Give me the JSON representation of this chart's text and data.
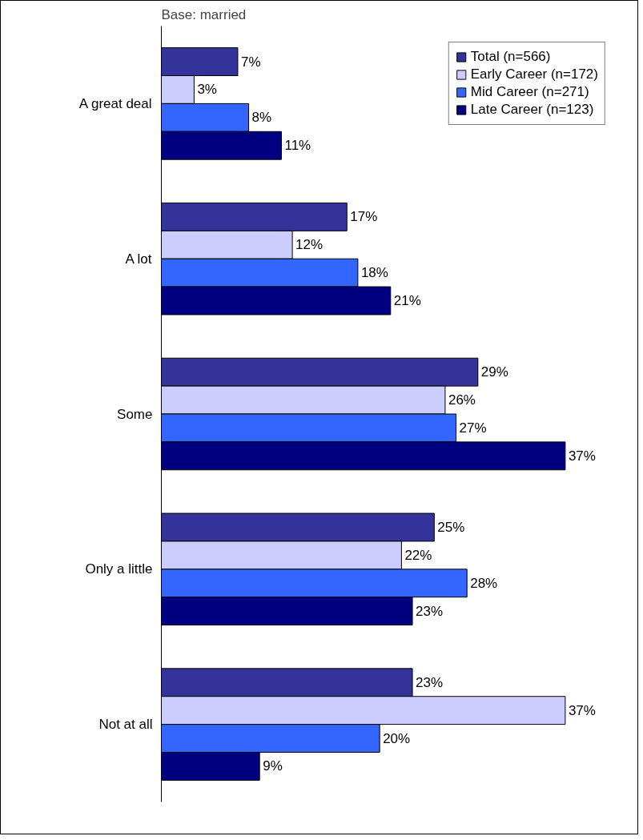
{
  "chart_data": {
    "type": "bar",
    "orientation": "horizontal",
    "title": "Base:  married",
    "categories": [
      "A great deal",
      "A lot",
      "Some",
      "Only a little",
      "Not at all"
    ],
    "series": [
      {
        "name": "Total (n=566)",
        "color": "#333399",
        "values": [
          7,
          17,
          29,
          25,
          23
        ],
        "value_labels": [
          "7%",
          "17%",
          "29%",
          "25%",
          "23%"
        ]
      },
      {
        "name": "Early Career (n=172)",
        "color": "#ccccff",
        "values": [
          3,
          12,
          26,
          22,
          37
        ],
        "value_labels": [
          "3%",
          "12%",
          "26%",
          "22%",
          "37%"
        ]
      },
      {
        "name": "Mid Career (n=271)",
        "color": "#3366ff",
        "values": [
          8,
          18,
          27,
          28,
          20
        ],
        "value_labels": [
          "8%",
          "18%",
          "27%",
          "28%",
          "20%"
        ]
      },
      {
        "name": "Late Career (n=123)",
        "color": "#000080",
        "values": [
          11,
          21,
          37,
          23,
          9
        ],
        "value_labels": [
          "11%",
          "21%",
          "37%",
          "23%",
          "9%"
        ]
      }
    ],
    "grid": false,
    "legend": "top right",
    "tick_labels": "y"
  }
}
